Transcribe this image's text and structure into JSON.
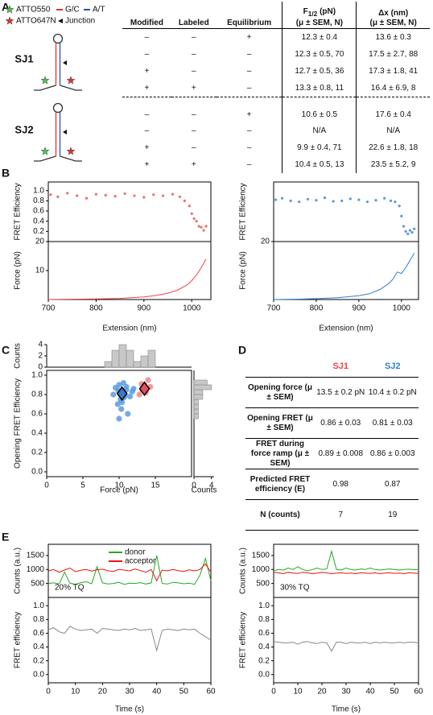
{
  "panel_labels": [
    "A",
    "B",
    "C",
    "D",
    "E"
  ],
  "legend_a": {
    "items": [
      "ATTO550",
      "ATTO647N",
      "G/C",
      "A/T",
      "Junction"
    ]
  },
  "table_a": {
    "headers": [
      "Modified",
      "Labeled",
      "Equilibrium",
      {
        "main": "F",
        "sub": "1/2",
        "unit": " (pN)",
        "detail": "(μ ± SEM, N)"
      },
      {
        "main": "Δx (nm)",
        "detail": "(μ ± SEM, N)"
      }
    ],
    "groups": [
      {
        "name": "SJ1",
        "color": "#e8474a",
        "rows": [
          [
            "–",
            "–",
            "+",
            "12.3 ± 0.4",
            "13.6 ± 0.3"
          ],
          [
            "–",
            "–",
            "–",
            "12.3 ± 0.5, 70",
            "17.5 ± 2.7, 88"
          ],
          [
            "+",
            "–",
            "–",
            "12.7 ± 0.5, 36",
            "17.3 ± 1.8, 41"
          ],
          [
            "+",
            "+",
            "–",
            "13.3 ± 0.8, 11",
            "16.4 ± 6.9, 8"
          ]
        ]
      },
      {
        "name": "SJ2",
        "color": "#2f7fd0",
        "rows": [
          [
            "–",
            "–",
            "+",
            "10.6 ± 0.5",
            "17.6 ± 0.4"
          ],
          [
            "–",
            "–",
            "–",
            "N/A",
            "N/A"
          ],
          [
            "+",
            "–",
            "–",
            "9.9 ± 0.4, 71",
            "22.6 ± 1.8, 18"
          ],
          [
            "+",
            "+",
            "–",
            "10.4 ± 0.5, 13",
            "23.5 ± 5.2, 9"
          ]
        ]
      }
    ]
  },
  "table_d": {
    "columns": [
      {
        "name": "SJ1",
        "color": "#e8474a"
      },
      {
        "name": "SJ2",
        "color": "#2f7fd0"
      }
    ],
    "rows": [
      {
        "label": "Opening force (μ ± SEM)",
        "values": [
          "13.5 ± 0.2 pN",
          "10.4 ± 0.2 pN"
        ]
      },
      {
        "label": "Opening FRET (μ ± SEM)",
        "values": [
          "0.86 ± 0.03",
          "0.81 ± 0.03"
        ]
      },
      {
        "label": "FRET during force ramp (μ ± SEM)",
        "values": [
          "0.89 ± 0.008",
          "0.86 ± 0.003"
        ]
      },
      {
        "label": "Predicted FRET efficiency (E)",
        "values": [
          "0.98",
          "0.87"
        ]
      },
      {
        "label": "N (counts)",
        "values": [
          "7",
          "19"
        ]
      }
    ]
  },
  "chart_data": [
    {
      "type": "trace-pair",
      "xlabel": "Extension (nm)",
      "xlim": [
        700,
        1040
      ],
      "xticks": [
        700,
        800,
        900,
        1000
      ],
      "top": {
        "ylabel": "FRET Efficiency",
        "ylim": [
          0,
          1.17
        ],
        "yticks": [
          0.2,
          0.4,
          0.6,
          0.8,
          {
            "value": 1,
            "label": "1.0"
          }
        ],
        "series": [
          {
            "color": "#e8474a",
            "style": "dots",
            "x": [
              705,
              720,
              740,
              760,
              780,
              800,
              820,
              840,
              860,
              880,
              900,
              920,
              940,
              960,
              975,
              985,
              995,
              1000,
              1005,
              1010,
              1015,
              1020,
              1025,
              1030
            ],
            "values": [
              0.92,
              0.88,
              0.95,
              0.9,
              0.85,
              0.93,
              0.91,
              0.89,
              0.94,
              0.9,
              0.87,
              0.92,
              0.9,
              0.93,
              0.88,
              0.8,
              0.7,
              0.55,
              0.45,
              0.4,
              0.3,
              0.28,
              0.22,
              0.3
            ]
          }
        ]
      },
      "bottom": {
        "ylabel": "Force (pN)",
        "ylim": [
          0,
          20
        ],
        "yticks": [
          10,
          20
        ],
        "series": [
          {
            "color": "#e8474a",
            "style": "line",
            "x": [
              700,
              750,
              800,
              850,
              900,
              925,
              950,
              970,
              990,
              1000,
              1010,
              1020,
              1030
            ],
            "values": [
              0,
              0.1,
              0.2,
              0.4,
              0.9,
              1.4,
              2.2,
              3.2,
              5,
              6.5,
              8.5,
              11,
              14
            ]
          }
        ]
      }
    },
    {
      "type": "trace-pair",
      "xlabel": "Extension (nm)",
      "xlim": [
        700,
        1040
      ],
      "xticks": [
        700,
        800,
        900,
        1000
      ],
      "top": {
        "ylabel": "FRET Efficiency",
        "ylim": [
          0,
          1.17
        ],
        "series": [
          {
            "color": "#2f7fd0",
            "style": "dots",
            "x": [
              705,
              720,
              740,
              760,
              780,
              800,
              820,
              840,
              860,
              880,
              900,
              920,
              940,
              960,
              975,
              985,
              995,
              1000,
              1005,
              1010,
              1015,
              1020,
              1025,
              1030
            ],
            "values": [
              0.82,
              0.85,
              0.8,
              0.78,
              0.83,
              0.81,
              0.86,
              0.79,
              0.8,
              0.84,
              0.82,
              0.78,
              0.81,
              0.85,
              0.8,
              0.78,
              0.7,
              0.5,
              0.3,
              0.2,
              0.15,
              0.22,
              0.18,
              0.25
            ]
          }
        ]
      },
      "bottom": {
        "ylabel": "Force (pN)",
        "ylim": [
          0,
          20
        ],
        "yticks": [
          20
        ],
        "series": [
          {
            "color": "#2f7fd0",
            "style": "line",
            "x": [
              700,
              750,
              800,
              850,
              900,
              925,
              950,
              970,
              980,
              990,
              1000,
              1010,
              1020,
              1030
            ],
            "values": [
              0,
              0.1,
              0.3,
              0.6,
              1.3,
              2,
              3.5,
              5.5,
              7,
              9.5,
              9,
              11,
              13.5,
              16
            ]
          }
        ]
      }
    },
    {
      "type": "scatter-hist",
      "xlabel": "Force (pN)",
      "ylabel": "Opening FRET Efficiency",
      "xlim": [
        0,
        20
      ],
      "xticks": [
        0,
        5,
        10,
        15
      ],
      "ylim": [
        -0.05,
        1.05
      ],
      "yticks": [
        {
          "value": 0,
          "label": "0.0"
        },
        0.2,
        0.4,
        0.6,
        0.8,
        {
          "value": 1,
          "label": "1.0"
        }
      ],
      "series": [
        {
          "color": "#5b9be0",
          "style": "points",
          "x": [
            9.5,
            10,
            10.2,
            10.8,
            11,
            11.5,
            9.8,
            10.5,
            11.2,
            10,
            10.6,
            11.8,
            9.2,
            10.3,
            11,
            10.7,
            9.9,
            10.4,
            12
          ],
          "values": [
            0.87,
            0.9,
            0.75,
            0.8,
            0.85,
            0.78,
            0.7,
            0.82,
            0.6,
            0.55,
            0.92,
            0.83,
            0.8,
            0.65,
            0.88,
            0.77,
            0.84,
            0.72,
            0.86
          ]
        },
        {
          "color": "#f0868a",
          "style": "points",
          "x": [
            12.8,
            13.2,
            13.5,
            14,
            13.7,
            14.3,
            13.1
          ],
          "values": [
            0.8,
            0.85,
            0.9,
            0.95,
            0.82,
            0.88,
            0.91
          ]
        },
        {
          "color": "#3a78c8",
          "style": "diamond",
          "x": [
            10.4
          ],
          "values": [
            0.81
          ]
        },
        {
          "color": "#e05060",
          "style": "diamond",
          "x": [
            13.5
          ],
          "values": [
            0.86
          ]
        }
      ],
      "top_hist": {
        "ylabel": "Counts",
        "ylim": [
          0,
          4
        ],
        "yticks": [
          0,
          2,
          4
        ],
        "color": "#c8c8c8",
        "bins": [
          8,
          9,
          10,
          11,
          12,
          13,
          14,
          15
        ],
        "counts": [
          1,
          3,
          4,
          3,
          1,
          2,
          3
        ]
      },
      "side_hist": {
        "xlabel": "Counts",
        "xlim": [
          0,
          4.6
        ],
        "xticks": [
          0,
          4
        ],
        "color": "#c8c8c8",
        "bins": [
          0.55,
          0.6,
          0.65,
          0.7,
          0.75,
          0.8,
          0.85,
          0.9,
          0.95
        ],
        "counts": [
          1,
          1,
          1,
          1,
          2,
          2,
          4,
          3
        ]
      }
    },
    {
      "type": "trace-pair",
      "xlabel": "Time (s)",
      "xlim": [
        0,
        60
      ],
      "xticks": [
        0,
        10,
        20,
        30,
        40,
        50,
        60
      ],
      "annotation": "20% TQ",
      "x": [
        0,
        2,
        4,
        6,
        8,
        10,
        12,
        14,
        16,
        18,
        20,
        22,
        24,
        26,
        28,
        30,
        32,
        34,
        36,
        38,
        40,
        42,
        44,
        46,
        48,
        50,
        52,
        54,
        56,
        58,
        60
      ],
      "top": {
        "ylabel": "Counts (a.u.)",
        "ylim": [
          0,
          1900
        ],
        "yticks": [
          500,
          1000,
          1500
        ],
        "series": [
          {
            "name": "donor",
            "color": "#22aa22",
            "style": "line",
            "values": [
              500,
              520,
              480,
              900,
              510,
              470,
              530,
              560,
              490,
              1100,
              520,
              480,
              500,
              540,
              470,
              510,
              500,
              530,
              480,
              520,
              1500,
              500,
              480,
              540,
              520,
              490,
              510,
              470,
              800,
              1400,
              600
            ]
          },
          {
            "name": "acceptor",
            "color": "#ee1111",
            "style": "line",
            "values": [
              950,
              1000,
              900,
              980,
              1050,
              920,
              970,
              1000,
              940,
              990,
              1010,
              960,
              930,
              1000,
              980,
              950,
              1020,
              960,
              900,
              1000,
              600,
              980,
              950,
              1000,
              960,
              930,
              990,
              950,
              1000,
              1200,
              900
            ]
          }
        ]
      },
      "bottom": {
        "ylabel": "FRET efficiency",
        "ylim": [
          -0.12,
          1.12
        ],
        "yticks": [
          {
            "value": 0,
            "label": "0.0"
          },
          0.2,
          0.4,
          0.6,
          0.8,
          {
            "value": 1,
            "label": "1.0"
          }
        ],
        "series": [
          {
            "color": "#888888",
            "style": "line",
            "values": [
              0.65,
              0.68,
              0.62,
              0.6,
              0.7,
              0.66,
              0.64,
              0.65,
              0.66,
              0.6,
              0.67,
              0.66,
              0.65,
              0.64,
              0.66,
              0.65,
              0.67,
              0.64,
              0.65,
              0.66,
              0.35,
              0.64,
              0.66,
              0.65,
              0.64,
              0.66,
              0.65,
              0.66,
              0.6,
              0.55,
              0.5
            ]
          }
        ]
      }
    },
    {
      "type": "trace-pair",
      "xlabel": "Time (s)",
      "xlim": [
        0,
        60
      ],
      "xticks": [
        0,
        10,
        20,
        30,
        40,
        50,
        60
      ],
      "annotation": "30% TQ",
      "x": [
        0,
        2,
        4,
        6,
        8,
        10,
        12,
        14,
        16,
        18,
        20,
        22,
        24,
        26,
        28,
        30,
        32,
        34,
        36,
        38,
        40,
        42,
        44,
        46,
        48,
        50,
        52,
        54,
        56,
        58,
        60
      ],
      "top": {
        "ylabel": "Counts (a.u.)",
        "ylim": [
          0,
          1900
        ],
        "yticks": [
          500,
          1000,
          1500
        ],
        "series": [
          {
            "color": "#22aa22",
            "style": "line",
            "values": [
              950,
              1000,
              980,
              1050,
              1000,
              1100,
              1000,
              950,
              1000,
              1050,
              1000,
              1020,
              1650,
              1000,
              980,
              1050,
              1000,
              980,
              1020,
              1000,
              1050,
              1000,
              980,
              1000,
              1020,
              1000,
              980,
              1000,
              1010,
              990,
              1000
            ]
          },
          {
            "color": "#ee1111",
            "style": "line",
            "values": [
              900,
              880,
              850,
              900,
              870,
              860,
              900,
              880,
              850,
              870,
              900,
              880,
              850,
              870,
              880,
              860,
              870,
              850,
              880,
              870,
              860,
              880,
              850,
              870,
              880,
              860,
              870,
              850,
              880,
              870,
              860
            ]
          }
        ]
      },
      "bottom": {
        "ylabel": "FRET efficiency",
        "ylim": [
          -0.12,
          1.12
        ],
        "yticks": [
          {
            "value": 0,
            "label": "0.0"
          },
          0.2,
          0.4,
          0.6,
          0.8,
          {
            "value": 1,
            "label": "1.0"
          }
        ],
        "series": [
          {
            "color": "#888888",
            "style": "line",
            "values": [
              0.48,
              0.47,
              0.46,
              0.46,
              0.47,
              0.44,
              0.47,
              0.48,
              0.46,
              0.45,
              0.47,
              0.46,
              0.34,
              0.47,
              0.47,
              0.45,
              0.47,
              0.46,
              0.46,
              0.47,
              0.45,
              0.47,
              0.46,
              0.47,
              0.46,
              0.46,
              0.47,
              0.46,
              0.47,
              0.47,
              0.46
            ]
          }
        ]
      }
    }
  ]
}
